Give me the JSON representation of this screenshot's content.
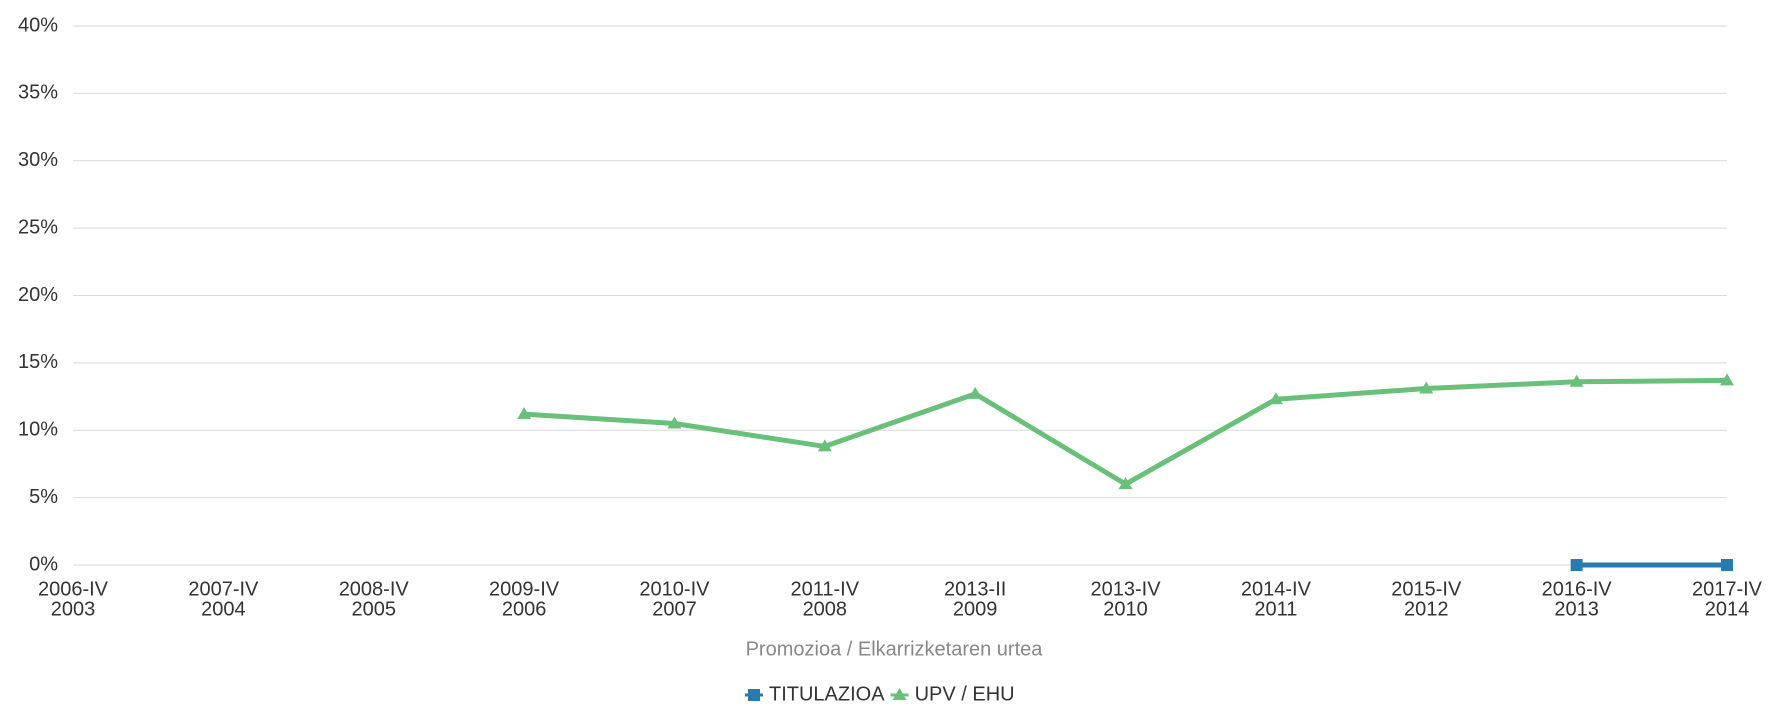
{
  "chart_data": {
    "type": "line",
    "categories": [
      [
        "2006-IV",
        "2003"
      ],
      [
        "2007-IV",
        "2004"
      ],
      [
        "2008-IV",
        "2005"
      ],
      [
        "2009-IV",
        "2006"
      ],
      [
        "2010-IV",
        "2007"
      ],
      [
        "2011-IV",
        "2008"
      ],
      [
        "2013-II",
        "2009"
      ],
      [
        "2013-IV",
        "2010"
      ],
      [
        "2014-IV",
        "2011"
      ],
      [
        "2015-IV",
        "2012"
      ],
      [
        "2016-IV",
        "2013"
      ],
      [
        "2017-IV",
        "2014"
      ]
    ],
    "series": [
      {
        "name": "TITULAZIOA",
        "color": "#2a7ab0",
        "marker": "square",
        "values": [
          null,
          null,
          null,
          null,
          null,
          null,
          null,
          null,
          null,
          null,
          0,
          0
        ]
      },
      {
        "name": "UPV / EHU",
        "color": "#6abf7b",
        "marker": "triangle",
        "values": [
          null,
          null,
          null,
          11.2,
          10.5,
          8.8,
          12.7,
          6.0,
          12.3,
          13.1,
          13.6,
          13.7
        ]
      }
    ],
    "xlabel": "Promozioa / Elkarrizketaren urtea",
    "ylim": [
      0,
      40
    ],
    "yticks": [
      {
        "value": 0,
        "label": "0%"
      },
      {
        "value": 5,
        "label": "5%"
      },
      {
        "value": 10,
        "label": "10%"
      },
      {
        "value": 15,
        "label": "15%"
      },
      {
        "value": 20,
        "label": "20%"
      },
      {
        "value": 25,
        "label": "25%"
      },
      {
        "value": 30,
        "label": "30%"
      },
      {
        "value": 35,
        "label": "35%"
      },
      {
        "value": 40,
        "label": "40%"
      }
    ],
    "grid": true,
    "legend": "bottom"
  }
}
